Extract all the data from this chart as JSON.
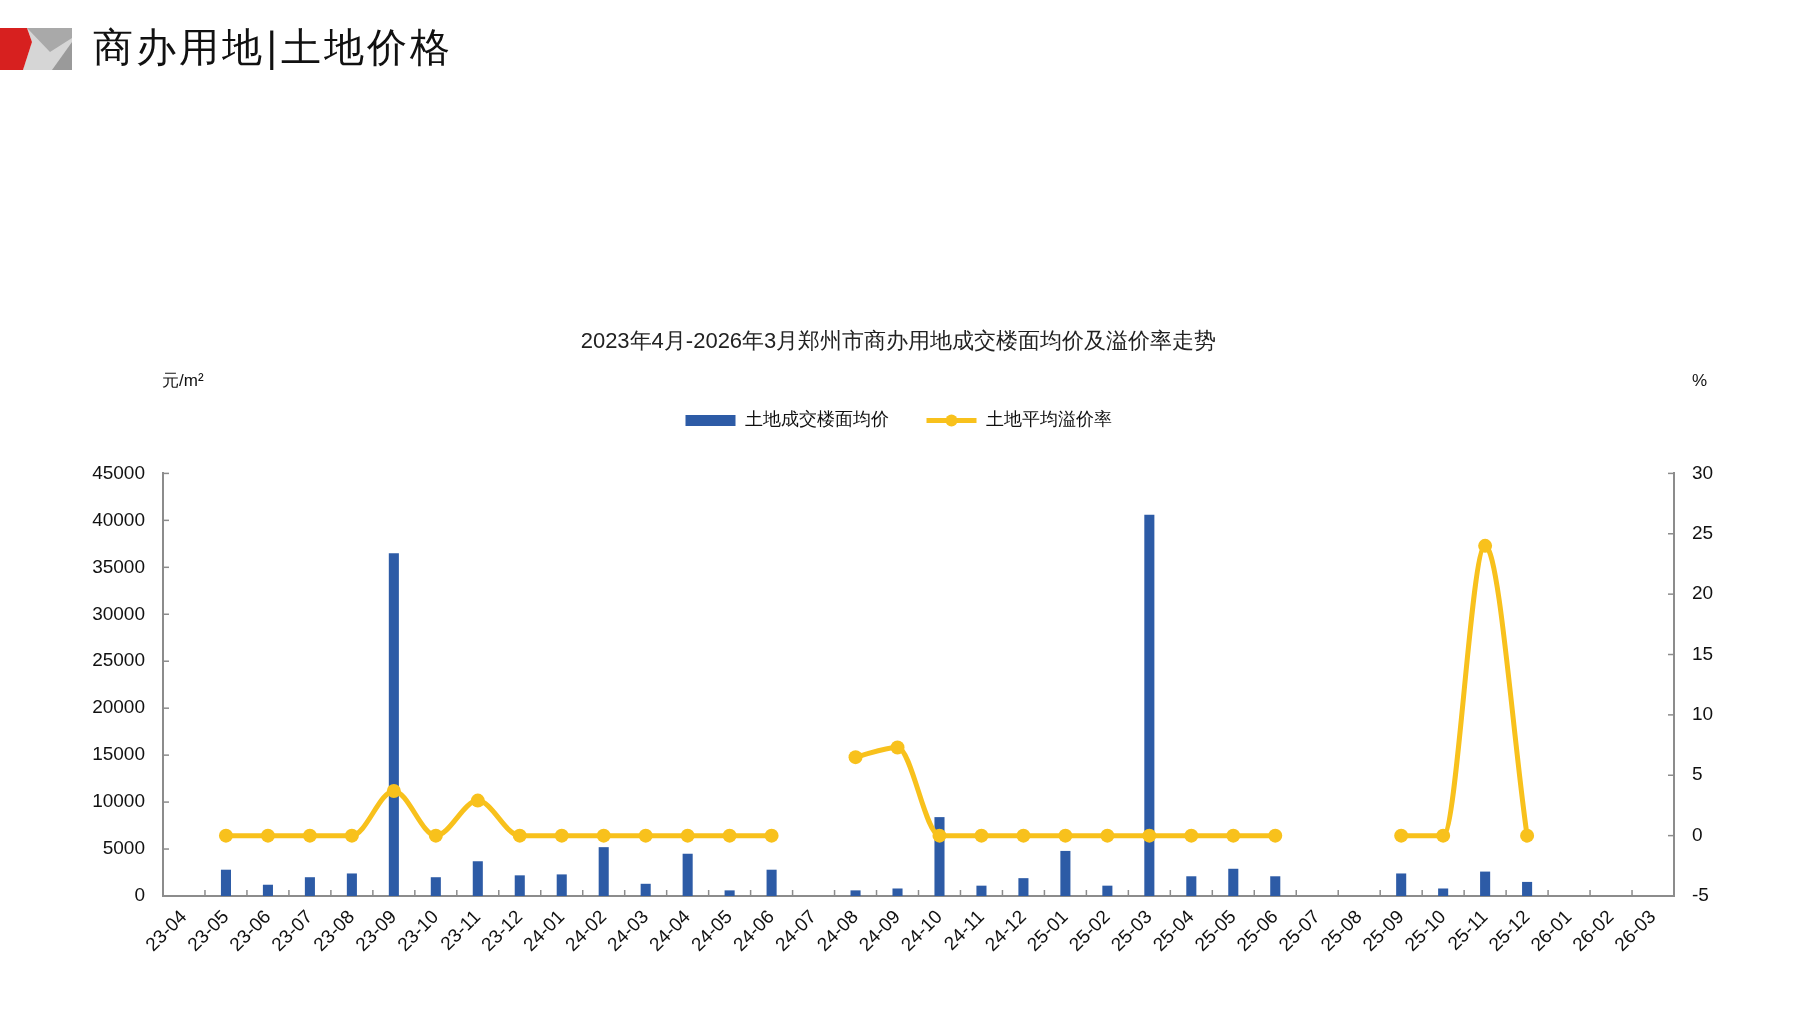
{
  "chart_data": {
    "type": "bar",
    "title": "2023年4月-2026年3月郑州市商办用地成交楼面均价及溢价率走势",
    "subtitle": "商办用地|土地价格",
    "ylabel": "元/m²",
    "y2label": "%",
    "categories": [
      "23-04",
      "23-05",
      "23-06",
      "23-07",
      "23-08",
      "23-09",
      "23-10",
      "23-11",
      "23-12",
      "24-01",
      "24-02",
      "24-03",
      "24-04",
      "24-05",
      "24-06",
      "24-07",
      "24-08",
      "24-09",
      "24-10",
      "24-11",
      "24-12",
      "25-01",
      "25-02",
      "25-03",
      "25-04",
      "25-05",
      "25-06",
      "25-07",
      "25-08",
      "25-09",
      "25-10",
      "25-11",
      "25-12",
      "26-01",
      "26-02",
      "26-03"
    ],
    "series": [
      {
        "name": "土地成交楼面均价",
        "color": "#2d5ba6",
        "values": [
          null,
          2800,
          1200,
          2000,
          2400,
          36500,
          2000,
          3700,
          2200,
          2300,
          5200,
          1300,
          4500,
          600,
          2800,
          null,
          600,
          800,
          8400,
          1100,
          1900,
          4800,
          1100,
          40600,
          2100,
          2900,
          2100,
          null,
          null,
          2400,
          800,
          2600,
          1500,
          null,
          null,
          null
        ]
      },
      {
        "name": "土地平均溢价率",
        "type": "line",
        "axis": "y2",
        "color": "#f8c11c",
        "values": [
          null,
          0,
          0,
          0,
          0,
          3.7,
          0,
          2.9,
          0,
          0,
          0,
          0,
          0,
          0,
          0,
          null,
          6.5,
          7.3,
          0,
          0,
          0,
          0,
          0,
          0,
          0,
          0,
          0,
          null,
          null,
          0,
          0,
          24,
          0,
          null,
          null,
          null
        ]
      }
    ],
    "ylim": [
      0,
      45000
    ],
    "yticks": [
      0,
      5000,
      10000,
      15000,
      20000,
      25000,
      30000,
      35000,
      40000,
      45000
    ],
    "y2lim": [
      -5,
      30
    ],
    "y2ticks": [
      -5,
      0,
      5,
      10,
      15,
      20,
      25,
      30
    ],
    "legend": "top",
    "grid": false,
    "marker": "circle",
    "line_style": "solid"
  }
}
